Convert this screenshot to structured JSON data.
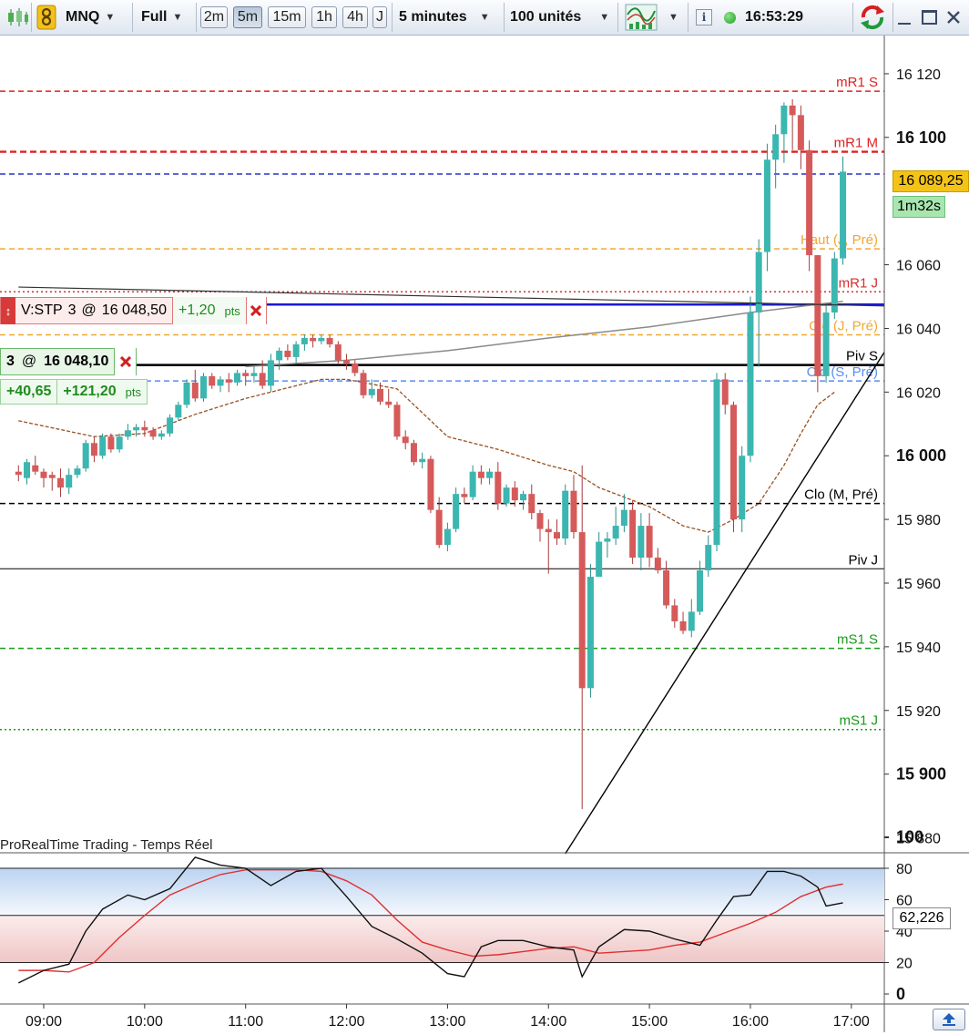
{
  "toolbar": {
    "instrument": "MNQ",
    "range": "Full",
    "timeframes": [
      "2m",
      "5m",
      "15m",
      "1h",
      "4h",
      "J"
    ],
    "active_timeframe": "5m",
    "interval": "5 minutes",
    "units": "100 unités",
    "clock": "16:53:29",
    "icons": [
      "candlestick-icon",
      "link-icon",
      "indicator-icon",
      "info-icon",
      "status-dot-icon",
      "refresh-icon",
      "minimize-icon",
      "maximize-icon",
      "close-icon"
    ]
  },
  "colors": {
    "up": "#3cb6b0",
    "down": "#d65a5a",
    "accent": "#f5c518"
  },
  "orders": {
    "stop": {
      "label": "V:STP",
      "qty": "3",
      "at": "@",
      "price": "16 048,50",
      "pnl": "+1,20",
      "unit": "pts"
    },
    "position": {
      "qty": "3",
      "at": "@",
      "price": "16 048,10",
      "pnl1": "+40,65",
      "pnl2": "+121,20",
      "unit": "pts"
    }
  },
  "watermark": "ProRealTime Trading - Temps Réel",
  "price_badge": {
    "price": "16 089,25",
    "countdown": "1m32s"
  },
  "stoch_value": "62,226",
  "chart_data": {
    "type": "candlestick",
    "y_axis": {
      "ylim": [
        15875,
        16132
      ],
      "ticks": [
        {
          "v": 16120,
          "label": "16 120",
          "bold": false
        },
        {
          "v": 16100,
          "label": "16 100",
          "bold": true
        },
        {
          "v": 16060,
          "label": "16 060",
          "bold": false
        },
        {
          "v": 16040,
          "label": "16 040",
          "bold": false
        },
        {
          "v": 16020,
          "label": "16 020",
          "bold": false
        },
        {
          "v": 16000,
          "label": "16 000",
          "bold": true
        },
        {
          "v": 15980,
          "label": "15 980",
          "bold": false
        },
        {
          "v": 15960,
          "label": "15 960",
          "bold": false
        },
        {
          "v": 15940,
          "label": "15 940",
          "bold": false
        },
        {
          "v": 15920,
          "label": "15 920",
          "bold": false
        },
        {
          "v": 15900,
          "label": "15 900",
          "bold": true
        },
        {
          "v": 15880,
          "label": "15 880",
          "bold": false
        }
      ]
    },
    "x_axis": {
      "hours": [
        9,
        10,
        11,
        12,
        13,
        14,
        15,
        16,
        17
      ],
      "labels": [
        "09:00",
        "10:00",
        "11:00",
        "12:00",
        "13:00",
        "14:00",
        "15:00",
        "16:00",
        "17:00"
      ]
    },
    "levels": [
      {
        "label": "mR1 S",
        "value": 16114.5,
        "color": "#e02020",
        "style": "dash"
      },
      {
        "label": "mR1 M",
        "value": 16095.5,
        "color": "#e02020",
        "style": "bolddash"
      },
      {
        "label": "",
        "value": 16088.5,
        "color": "#2a33c8",
        "style": "dash"
      },
      {
        "label": "Haut (J, Pré)",
        "value": 16065,
        "color": "#f0a830",
        "style": "dash"
      },
      {
        "label": "mR1 J",
        "value": 16051.5,
        "color": "#d03030",
        "style": "dot"
      },
      {
        "label": "",
        "value": 16047.5,
        "color": "#1a1ad0",
        "style": "solidthick"
      },
      {
        "label": "Clo (J, Pré)",
        "value": 16038,
        "color": "#f0a830",
        "style": "dash"
      },
      {
        "label": "Piv S",
        "value": 16028.5,
        "color": "#000000",
        "style": "solidthick"
      },
      {
        "label": "Clo (S, Pré)",
        "value": 16023.5,
        "color": "#5a8cf0",
        "style": "dash"
      },
      {
        "label": "Clo (M, Pré)",
        "value": 15985,
        "color": "#000000",
        "style": "dash"
      },
      {
        "label": "Piv J",
        "value": 15964.5,
        "color": "#000000",
        "style": "solid"
      },
      {
        "label": "mS1 S",
        "value": 15939.5,
        "color": "#1a9a1a",
        "style": "dash"
      },
      {
        "label": "mS1 J",
        "value": 15914,
        "color": "#1a9a1a",
        "style": "dot"
      }
    ],
    "candles": [
      [
        "08:45",
        15995,
        15997,
        15992,
        15994
      ],
      [
        "08:50",
        15993,
        15999,
        15991,
        15998
      ],
      [
        "08:55",
        15997,
        16000,
        15994,
        15995
      ],
      [
        "09:00",
        15995,
        15996,
        15990,
        15993
      ],
      [
        "09:05",
        15994,
        15995,
        15989,
        15993
      ],
      [
        "09:10",
        15993,
        15996,
        15987,
        15990
      ],
      [
        "09:15",
        15990,
        15996,
        15988,
        15994
      ],
      [
        "09:20",
        15994,
        15997,
        15993,
        15996
      ],
      [
        "09:25",
        15996,
        16005,
        15995,
        16004
      ],
      [
        "09:30",
        16004,
        16006,
        15998,
        16000
      ],
      [
        "09:35",
        16000,
        16007,
        15999,
        16006
      ],
      [
        "09:40",
        16006,
        16007,
        16001,
        16002
      ],
      [
        "09:45",
        16002,
        16007,
        16001,
        16006
      ],
      [
        "09:50",
        16006,
        16010,
        16005,
        16008
      ],
      [
        "09:55",
        16008,
        16010,
        16006,
        16009
      ],
      [
        "10:00",
        16009,
        16011,
        16006,
        16008
      ],
      [
        "10:05",
        16008,
        16009,
        16005,
        16006
      ],
      [
        "10:10",
        16006,
        16008,
        16005,
        16007
      ],
      [
        "10:15",
        16007,
        16013,
        16006,
        16012
      ],
      [
        "10:20",
        16012,
        16017,
        16011,
        16016
      ],
      [
        "10:25",
        16016,
        16024,
        16015,
        16023
      ],
      [
        "10:30",
        16023,
        16027,
        16017,
        16018
      ],
      [
        "10:35",
        16018,
        16026,
        16017,
        16025
      ],
      [
        "10:40",
        16025,
        16026,
        16021,
        16022
      ],
      [
        "10:45",
        16022,
        16025,
        16020,
        16024
      ],
      [
        "10:50",
        16024,
        16026,
        16020,
        16023
      ],
      [
        "10:55",
        16023,
        16027,
        16022,
        16026
      ],
      [
        "11:00",
        16026,
        16027,
        16022,
        16025
      ],
      [
        "11:05",
        16025,
        16028,
        16023,
        16026
      ],
      [
        "11:10",
        16026,
        16030,
        16021,
        16022
      ],
      [
        "11:15",
        16022,
        16032,
        16020,
        16030
      ],
      [
        "11:20",
        16030,
        16034,
        16027,
        16033
      ],
      [
        "11:25",
        16033,
        16035,
        16030,
        16031
      ],
      [
        "11:30",
        16031,
        16036,
        16029,
        16035
      ],
      [
        "11:35",
        16035,
        16038,
        16033,
        16037
      ],
      [
        "11:40",
        16037,
        16038,
        16034,
        16036
      ],
      [
        "11:45",
        16036,
        16038,
        16035,
        16037
      ],
      [
        "11:50",
        16037,
        16038,
        16034,
        16035
      ],
      [
        "11:55",
        16035,
        16036,
        16029,
        16030
      ],
      [
        "12:00",
        16030,
        16032,
        16027,
        16029
      ],
      [
        "12:05",
        16029,
        16030,
        16025,
        16026
      ],
      [
        "12:10",
        16026,
        16027,
        16018,
        16019
      ],
      [
        "12:15",
        16019,
        16024,
        16018,
        16021
      ],
      [
        "12:20",
        16021,
        16023,
        16016,
        16017
      ],
      [
        "12:25",
        16017,
        16021,
        16015,
        16016
      ],
      [
        "12:30",
        16016,
        16017,
        16005,
        16006
      ],
      [
        "12:35",
        16006,
        16008,
        16002,
        16004
      ],
      [
        "12:40",
        16004,
        16005,
        15997,
        15998
      ],
      [
        "12:45",
        15998,
        16001,
        15996,
        15999
      ],
      [
        "12:50",
        15999,
        16000,
        15982,
        15983
      ],
      [
        "12:55",
        15983,
        15987,
        15971,
        15972
      ],
      [
        "13:00",
        15972,
        15979,
        15970,
        15977
      ],
      [
        "13:05",
        15977,
        15990,
        15976,
        15988
      ],
      [
        "13:10",
        15988,
        15990,
        15985,
        15987
      ],
      [
        "13:15",
        15987,
        15997,
        15986,
        15995
      ],
      [
        "13:20",
        15995,
        15997,
        15991,
        15993
      ],
      [
        "13:25",
        15993,
        15996,
        15991,
        15995
      ],
      [
        "13:30",
        15995,
        15998,
        15983,
        15985
      ],
      [
        "13:35",
        15985,
        15991,
        15984,
        15990
      ],
      [
        "13:40",
        15990,
        15992,
        15984,
        15986
      ],
      [
        "13:45",
        15986,
        15989,
        15983,
        15988
      ],
      [
        "13:50",
        15988,
        15991,
        15980,
        15982
      ],
      [
        "13:55",
        15982,
        15983,
        15973,
        15977
      ],
      [
        "14:00",
        15977,
        15980,
        15963,
        15976
      ],
      [
        "14:05",
        15976,
        15980,
        15972,
        15974
      ],
      [
        "14:10",
        15974,
        15991,
        15972,
        15989
      ],
      [
        "14:15",
        15989,
        15994,
        15974,
        15976
      ],
      [
        "14:20",
        15976,
        15997,
        15889,
        15927
      ],
      [
        "14:25",
        15927,
        15966,
        15924,
        15962
      ],
      [
        "14:30",
        15962,
        15976,
        15962,
        15973
      ],
      [
        "14:35",
        15973,
        15976,
        15968,
        15974
      ],
      [
        "14:40",
        15974,
        15984,
        15972,
        15978
      ],
      [
        "14:45",
        15978,
        15988,
        15976,
        15983
      ],
      [
        "14:50",
        15983,
        15986,
        15966,
        15968
      ],
      [
        "14:55",
        15968,
        15982,
        15964,
        15978
      ],
      [
        "15:00",
        15978,
        15982,
        15965,
        15968
      ],
      [
        "15:05",
        15968,
        15971,
        15963,
        15964
      ],
      [
        "15:10",
        15964,
        15967,
        15952,
        15953
      ],
      [
        "15:15",
        15953,
        15955,
        15946,
        15948
      ],
      [
        "15:20",
        15948,
        15951,
        15944,
        15945
      ],
      [
        "15:25",
        15945,
        15955,
        15943,
        15951
      ],
      [
        "15:30",
        15951,
        15967,
        15950,
        15964
      ],
      [
        "15:35",
        15964,
        15975,
        15962,
        15972
      ],
      [
        "15:40",
        15972,
        16026,
        15970,
        16024
      ],
      [
        "15:45",
        16024,
        16026,
        16013,
        16016
      ],
      [
        "15:50",
        16016,
        16017,
        15976,
        15980
      ],
      [
        "15:55",
        15980,
        16003,
        15976,
        16000
      ],
      [
        "16:00",
        16000,
        16050,
        15998,
        16045
      ],
      [
        "16:05",
        16045,
        16068,
        16028,
        16064
      ],
      [
        "16:10",
        16064,
        16098,
        16058,
        16093
      ],
      [
        "16:15",
        16093,
        16104,
        16084,
        16101
      ],
      [
        "16:20",
        16101,
        16111,
        16092,
        16110
      ],
      [
        "16:25",
        16110,
        16112,
        16096,
        16107
      ],
      [
        "16:30",
        16107,
        16110,
        16090,
        16096
      ],
      [
        "16:35",
        16096,
        16099,
        16058,
        16063
      ],
      [
        "16:40",
        16063,
        16063,
        16020,
        16025
      ],
      [
        "16:45",
        16025,
        16048,
        16023,
        16045
      ],
      [
        "16:50",
        16045,
        16064,
        16043,
        16062
      ],
      [
        "16:55",
        16062,
        16094,
        16060,
        16089.25
      ]
    ],
    "trendline_right": [
      [
        "14:10",
        15875
      ],
      [
        "17:25",
        16037
      ]
    ],
    "trendline_left": [
      [
        "08:45",
        16053
      ],
      [
        "17:25",
        16047
      ]
    ],
    "ma_brown": [
      [
        "08:45",
        16011
      ],
      [
        "09:30",
        16006
      ],
      [
        "10:00",
        16007
      ],
      [
        "10:30",
        16013
      ],
      [
        "11:00",
        16018
      ],
      [
        "11:30",
        16022
      ],
      [
        "11:45",
        16024
      ],
      [
        "12:00",
        16024
      ],
      [
        "12:30",
        16021
      ],
      [
        "13:00",
        16006
      ],
      [
        "13:30",
        16002
      ],
      [
        "14:00",
        15997
      ],
      [
        "14:15",
        15995
      ],
      [
        "14:30",
        15990
      ],
      [
        "15:00",
        15984
      ],
      [
        "15:20",
        15978
      ],
      [
        "15:35",
        15976
      ],
      [
        "15:50",
        15980
      ],
      [
        "16:05",
        15985
      ],
      [
        "16:20",
        15997
      ],
      [
        "16:30",
        16007
      ],
      [
        "16:40",
        16016
      ],
      [
        "16:50",
        16020
      ]
    ],
    "ma_grey": [
      [
        "11:00",
        16028
      ],
      [
        "12:00",
        16030
      ],
      [
        "13:00",
        16033
      ],
      [
        "14:00",
        16037
      ],
      [
        "15:00",
        16040.5
      ],
      [
        "16:00",
        16045
      ],
      [
        "16:55",
        16048.5
      ]
    ],
    "stochastic": {
      "ylim": [
        0,
        100
      ],
      "ticks": [
        100,
        80,
        60,
        40,
        20,
        0
      ],
      "bands": [
        80,
        50,
        20
      ],
      "current": 62.226,
      "k": [
        [
          "08:45",
          7
        ],
        [
          "09:00",
          15
        ],
        [
          "09:15",
          19
        ],
        [
          "09:25",
          40
        ],
        [
          "09:35",
          54
        ],
        [
          "09:50",
          63
        ],
        [
          "10:00",
          60
        ],
        [
          "10:15",
          67
        ],
        [
          "10:30",
          87
        ],
        [
          "10:45",
          82
        ],
        [
          "11:00",
          80
        ],
        [
          "11:15",
          69
        ],
        [
          "11:30",
          78
        ],
        [
          "11:45",
          80
        ],
        [
          "12:00",
          62
        ],
        [
          "12:15",
          43
        ],
        [
          "12:30",
          35
        ],
        [
          "12:45",
          26
        ],
        [
          "13:00",
          13
        ],
        [
          "13:10",
          11
        ],
        [
          "13:20",
          30
        ],
        [
          "13:30",
          34
        ],
        [
          "13:45",
          34
        ],
        [
          "14:00",
          30
        ],
        [
          "14:15",
          28
        ],
        [
          "14:20",
          11
        ],
        [
          "14:30",
          30
        ],
        [
          "14:45",
          41
        ],
        [
          "15:00",
          40
        ],
        [
          "15:15",
          35
        ],
        [
          "15:30",
          31
        ],
        [
          "15:40",
          47
        ],
        [
          "15:50",
          62
        ],
        [
          "16:00",
          63
        ],
        [
          "16:10",
          78
        ],
        [
          "16:20",
          78
        ],
        [
          "16:30",
          75
        ],
        [
          "16:40",
          68
        ],
        [
          "16:45",
          56
        ],
        [
          "16:55",
          58
        ]
      ],
      "d": [
        [
          "08:45",
          15
        ],
        [
          "09:00",
          15
        ],
        [
          "09:15",
          14
        ],
        [
          "09:30",
          20
        ],
        [
          "09:45",
          36
        ],
        [
          "10:00",
          50
        ],
        [
          "10:15",
          63
        ],
        [
          "10:30",
          70
        ],
        [
          "10:45",
          76
        ],
        [
          "11:00",
          79
        ],
        [
          "11:15",
          79
        ],
        [
          "11:30",
          79
        ],
        [
          "11:45",
          78
        ],
        [
          "12:00",
          72
        ],
        [
          "12:15",
          63
        ],
        [
          "12:30",
          47
        ],
        [
          "12:45",
          33
        ],
        [
          "13:00",
          28
        ],
        [
          "13:15",
          24
        ],
        [
          "13:30",
          25
        ],
        [
          "13:45",
          27
        ],
        [
          "14:00",
          29
        ],
        [
          "14:15",
          30
        ],
        [
          "14:30",
          26
        ],
        [
          "14:45",
          27
        ],
        [
          "15:00",
          28
        ],
        [
          "15:15",
          31
        ],
        [
          "15:30",
          33
        ],
        [
          "15:45",
          39
        ],
        [
          "16:00",
          45
        ],
        [
          "16:15",
          52
        ],
        [
          "16:30",
          62
        ],
        [
          "16:45",
          68
        ],
        [
          "16:55",
          70
        ]
      ]
    }
  }
}
